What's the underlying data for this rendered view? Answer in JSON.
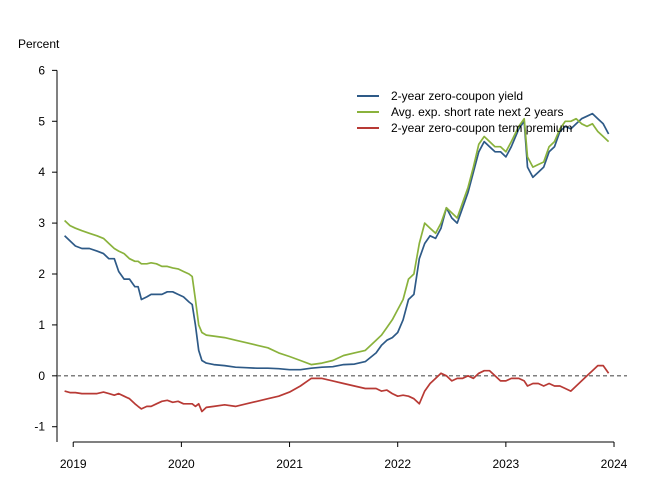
{
  "chart_data": {
    "type": "line",
    "title": "",
    "ylabel": "Percent",
    "xlabel": "",
    "xlim": [
      2018.85,
      2024.12
    ],
    "ylim": [
      -1.3,
      6.4
    ],
    "y_ticks": [
      -1,
      0,
      1,
      2,
      3,
      4,
      5,
      6
    ],
    "x_ticks": [
      2019,
      2020,
      2021,
      2022,
      2023,
      2024
    ],
    "y_tick_labels": [
      "-1",
      "0",
      "1",
      "2",
      "3",
      "4",
      "5",
      "6"
    ],
    "x_tick_labels": [
      "2019",
      "2020",
      "2021",
      "2022",
      "2023",
      "2024"
    ],
    "zero_line": {
      "y": 0,
      "style": "dashed",
      "color": "#555555"
    },
    "grid": false,
    "legend_position": "upper-right",
    "series": [
      {
        "name": "2-year zero-coupon yield",
        "color": "#2E5A87",
        "points": [
          [
            2018.92,
            2.75
          ],
          [
            2018.97,
            2.65
          ],
          [
            2019.02,
            2.55
          ],
          [
            2019.08,
            2.5
          ],
          [
            2019.15,
            2.5
          ],
          [
            2019.22,
            2.45
          ],
          [
            2019.28,
            2.4
          ],
          [
            2019.33,
            2.3
          ],
          [
            2019.38,
            2.3
          ],
          [
            2019.42,
            2.05
          ],
          [
            2019.47,
            1.9
          ],
          [
            2019.52,
            1.9
          ],
          [
            2019.57,
            1.75
          ],
          [
            2019.6,
            1.75
          ],
          [
            2019.63,
            1.5
          ],
          [
            2019.68,
            1.55
          ],
          [
            2019.72,
            1.6
          ],
          [
            2019.77,
            1.6
          ],
          [
            2019.82,
            1.6
          ],
          [
            2019.87,
            1.65
          ],
          [
            2019.92,
            1.65
          ],
          [
            2019.97,
            1.6
          ],
          [
            2020.02,
            1.55
          ],
          [
            2020.07,
            1.45
          ],
          [
            2020.1,
            1.4
          ],
          [
            2020.13,
            1.0
          ],
          [
            2020.16,
            0.5
          ],
          [
            2020.19,
            0.3
          ],
          [
            2020.23,
            0.25
          ],
          [
            2020.3,
            0.22
          ],
          [
            2020.4,
            0.2
          ],
          [
            2020.5,
            0.17
          ],
          [
            2020.6,
            0.16
          ],
          [
            2020.7,
            0.15
          ],
          [
            2020.8,
            0.15
          ],
          [
            2020.9,
            0.14
          ],
          [
            2021.0,
            0.12
          ],
          [
            2021.1,
            0.12
          ],
          [
            2021.2,
            0.15
          ],
          [
            2021.3,
            0.17
          ],
          [
            2021.4,
            0.18
          ],
          [
            2021.5,
            0.22
          ],
          [
            2021.6,
            0.23
          ],
          [
            2021.7,
            0.28
          ],
          [
            2021.8,
            0.45
          ],
          [
            2021.85,
            0.6
          ],
          [
            2021.9,
            0.7
          ],
          [
            2021.95,
            0.75
          ],
          [
            2022.0,
            0.85
          ],
          [
            2022.05,
            1.1
          ],
          [
            2022.1,
            1.5
          ],
          [
            2022.15,
            1.6
          ],
          [
            2022.2,
            2.3
          ],
          [
            2022.25,
            2.6
          ],
          [
            2022.3,
            2.75
          ],
          [
            2022.35,
            2.7
          ],
          [
            2022.4,
            2.9
          ],
          [
            2022.45,
            3.3
          ],
          [
            2022.5,
            3.1
          ],
          [
            2022.55,
            3.0
          ],
          [
            2022.6,
            3.3
          ],
          [
            2022.65,
            3.6
          ],
          [
            2022.7,
            4.0
          ],
          [
            2022.75,
            4.4
          ],
          [
            2022.8,
            4.6
          ],
          [
            2022.85,
            4.5
          ],
          [
            2022.9,
            4.4
          ],
          [
            2022.95,
            4.4
          ],
          [
            2023.0,
            4.3
          ],
          [
            2023.05,
            4.5
          ],
          [
            2023.12,
            4.85
          ],
          [
            2023.17,
            5.0
          ],
          [
            2023.2,
            4.1
          ],
          [
            2023.25,
            3.9
          ],
          [
            2023.3,
            4.0
          ],
          [
            2023.35,
            4.1
          ],
          [
            2023.4,
            4.4
          ],
          [
            2023.45,
            4.5
          ],
          [
            2023.5,
            4.8
          ],
          [
            2023.55,
            4.9
          ],
          [
            2023.6,
            4.85
          ],
          [
            2023.65,
            4.95
          ],
          [
            2023.7,
            5.05
          ],
          [
            2023.75,
            5.1
          ],
          [
            2023.8,
            5.15
          ],
          [
            2023.85,
            5.05
          ],
          [
            2023.9,
            4.95
          ],
          [
            2023.95,
            4.75
          ]
        ]
      },
      {
        "name": "Avg. exp. short rate next 2 years",
        "color": "#8AB23C",
        "points": [
          [
            2018.92,
            3.05
          ],
          [
            2018.97,
            2.95
          ],
          [
            2019.02,
            2.9
          ],
          [
            2019.08,
            2.85
          ],
          [
            2019.15,
            2.8
          ],
          [
            2019.22,
            2.75
          ],
          [
            2019.28,
            2.7
          ],
          [
            2019.33,
            2.6
          ],
          [
            2019.38,
            2.5
          ],
          [
            2019.42,
            2.45
          ],
          [
            2019.47,
            2.4
          ],
          [
            2019.52,
            2.3
          ],
          [
            2019.57,
            2.25
          ],
          [
            2019.6,
            2.25
          ],
          [
            2019.63,
            2.2
          ],
          [
            2019.68,
            2.2
          ],
          [
            2019.72,
            2.22
          ],
          [
            2019.77,
            2.2
          ],
          [
            2019.82,
            2.15
          ],
          [
            2019.87,
            2.15
          ],
          [
            2019.92,
            2.12
          ],
          [
            2019.97,
            2.1
          ],
          [
            2020.02,
            2.05
          ],
          [
            2020.07,
            2.0
          ],
          [
            2020.1,
            1.95
          ],
          [
            2020.13,
            1.5
          ],
          [
            2020.16,
            1.0
          ],
          [
            2020.19,
            0.85
          ],
          [
            2020.23,
            0.8
          ],
          [
            2020.3,
            0.78
          ],
          [
            2020.4,
            0.75
          ],
          [
            2020.5,
            0.7
          ],
          [
            2020.6,
            0.65
          ],
          [
            2020.7,
            0.6
          ],
          [
            2020.8,
            0.55
          ],
          [
            2020.9,
            0.45
          ],
          [
            2021.0,
            0.38
          ],
          [
            2021.1,
            0.3
          ],
          [
            2021.2,
            0.22
          ],
          [
            2021.3,
            0.25
          ],
          [
            2021.4,
            0.3
          ],
          [
            2021.5,
            0.4
          ],
          [
            2021.6,
            0.45
          ],
          [
            2021.7,
            0.5
          ],
          [
            2021.8,
            0.7
          ],
          [
            2021.85,
            0.8
          ],
          [
            2021.9,
            0.95
          ],
          [
            2021.95,
            1.1
          ],
          [
            2022.0,
            1.3
          ],
          [
            2022.05,
            1.5
          ],
          [
            2022.1,
            1.9
          ],
          [
            2022.15,
            2.0
          ],
          [
            2022.2,
            2.6
          ],
          [
            2022.25,
            3.0
          ],
          [
            2022.3,
            2.9
          ],
          [
            2022.35,
            2.8
          ],
          [
            2022.4,
            3.0
          ],
          [
            2022.45,
            3.3
          ],
          [
            2022.5,
            3.2
          ],
          [
            2022.55,
            3.1
          ],
          [
            2022.6,
            3.4
          ],
          [
            2022.65,
            3.7
          ],
          [
            2022.7,
            4.1
          ],
          [
            2022.75,
            4.55
          ],
          [
            2022.8,
            4.7
          ],
          [
            2022.85,
            4.6
          ],
          [
            2022.9,
            4.5
          ],
          [
            2022.95,
            4.5
          ],
          [
            2023.0,
            4.4
          ],
          [
            2023.05,
            4.6
          ],
          [
            2023.12,
            4.9
          ],
          [
            2023.17,
            5.05
          ],
          [
            2023.2,
            4.3
          ],
          [
            2023.25,
            4.1
          ],
          [
            2023.3,
            4.15
          ],
          [
            2023.35,
            4.2
          ],
          [
            2023.4,
            4.5
          ],
          [
            2023.45,
            4.6
          ],
          [
            2023.5,
            4.85
          ],
          [
            2023.55,
            5.0
          ],
          [
            2023.6,
            5.0
          ],
          [
            2023.65,
            5.05
          ],
          [
            2023.7,
            4.95
          ],
          [
            2023.75,
            4.9
          ],
          [
            2023.8,
            4.95
          ],
          [
            2023.85,
            4.8
          ],
          [
            2023.9,
            4.7
          ],
          [
            2023.95,
            4.6
          ]
        ]
      },
      {
        "name": "2-year zero-coupon term premium",
        "color": "#B83A35",
        "points": [
          [
            2018.92,
            -0.3
          ],
          [
            2018.97,
            -0.33
          ],
          [
            2019.02,
            -0.33
          ],
          [
            2019.08,
            -0.35
          ],
          [
            2019.15,
            -0.35
          ],
          [
            2019.22,
            -0.35
          ],
          [
            2019.28,
            -0.32
          ],
          [
            2019.33,
            -0.35
          ],
          [
            2019.38,
            -0.38
          ],
          [
            2019.42,
            -0.35
          ],
          [
            2019.47,
            -0.4
          ],
          [
            2019.52,
            -0.45
          ],
          [
            2019.57,
            -0.55
          ],
          [
            2019.6,
            -0.6
          ],
          [
            2019.63,
            -0.65
          ],
          [
            2019.68,
            -0.6
          ],
          [
            2019.72,
            -0.6
          ],
          [
            2019.77,
            -0.55
          ],
          [
            2019.82,
            -0.5
          ],
          [
            2019.87,
            -0.48
          ],
          [
            2019.92,
            -0.52
          ],
          [
            2019.97,
            -0.5
          ],
          [
            2020.02,
            -0.55
          ],
          [
            2020.07,
            -0.55
          ],
          [
            2020.1,
            -0.55
          ],
          [
            2020.13,
            -0.6
          ],
          [
            2020.16,
            -0.55
          ],
          [
            2020.19,
            -0.7
          ],
          [
            2020.23,
            -0.62
          ],
          [
            2020.3,
            -0.6
          ],
          [
            2020.4,
            -0.57
          ],
          [
            2020.5,
            -0.6
          ],
          [
            2020.6,
            -0.55
          ],
          [
            2020.7,
            -0.5
          ],
          [
            2020.8,
            -0.45
          ],
          [
            2020.9,
            -0.4
          ],
          [
            2021.0,
            -0.32
          ],
          [
            2021.1,
            -0.2
          ],
          [
            2021.2,
            -0.05
          ],
          [
            2021.3,
            -0.05
          ],
          [
            2021.4,
            -0.1
          ],
          [
            2021.5,
            -0.15
          ],
          [
            2021.6,
            -0.2
          ],
          [
            2021.7,
            -0.25
          ],
          [
            2021.8,
            -0.25
          ],
          [
            2021.85,
            -0.3
          ],
          [
            2021.9,
            -0.28
          ],
          [
            2021.95,
            -0.35
          ],
          [
            2022.0,
            -0.4
          ],
          [
            2022.05,
            -0.38
          ],
          [
            2022.1,
            -0.4
          ],
          [
            2022.15,
            -0.45
          ],
          [
            2022.2,
            -0.55
          ],
          [
            2022.25,
            -0.3
          ],
          [
            2022.3,
            -0.15
          ],
          [
            2022.35,
            -0.05
          ],
          [
            2022.4,
            0.05
          ],
          [
            2022.45,
            0.0
          ],
          [
            2022.5,
            -0.1
          ],
          [
            2022.55,
            -0.05
          ],
          [
            2022.6,
            -0.05
          ],
          [
            2022.65,
            0.0
          ],
          [
            2022.7,
            -0.05
          ],
          [
            2022.75,
            0.05
          ],
          [
            2022.8,
            0.1
          ],
          [
            2022.85,
            0.1
          ],
          [
            2022.9,
            0.0
          ],
          [
            2022.95,
            -0.1
          ],
          [
            2023.0,
            -0.1
          ],
          [
            2023.05,
            -0.05
          ],
          [
            2023.12,
            -0.05
          ],
          [
            2023.17,
            -0.1
          ],
          [
            2023.2,
            -0.2
          ],
          [
            2023.25,
            -0.15
          ],
          [
            2023.3,
            -0.15
          ],
          [
            2023.35,
            -0.2
          ],
          [
            2023.4,
            -0.15
          ],
          [
            2023.45,
            -0.2
          ],
          [
            2023.5,
            -0.2
          ],
          [
            2023.55,
            -0.25
          ],
          [
            2023.6,
            -0.3
          ],
          [
            2023.65,
            -0.2
          ],
          [
            2023.7,
            -0.1
          ],
          [
            2023.75,
            0.0
          ],
          [
            2023.8,
            0.1
          ],
          [
            2023.85,
            0.2
          ],
          [
            2023.9,
            0.2
          ],
          [
            2023.95,
            0.05
          ]
        ]
      }
    ]
  }
}
